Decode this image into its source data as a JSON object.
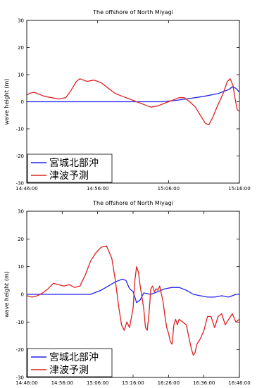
{
  "chart_data": [
    {
      "type": "line",
      "title": "The offshore of North Miyagi",
      "xlabel": "",
      "ylabel": "wave height (m)",
      "xlim_minutes": [
        0,
        30
      ],
      "ylim": [
        -30,
        30
      ],
      "yticks": [
        -30,
        -20,
        -10,
        0,
        10,
        20,
        30
      ],
      "xticks": [
        {
          "x": 0,
          "label": "14:46:00"
        },
        {
          "x": 10,
          "label": "14:56:00"
        },
        {
          "x": 20,
          "label": "15:06:00"
        },
        {
          "x": 30,
          "label": "15:16:00"
        }
      ],
      "legend_position": "bottom-left",
      "series": [
        {
          "name": "宮城北部沖",
          "color": "#2222ee",
          "points": [
            [
              0,
              0
            ],
            [
              8,
              0
            ],
            [
              16,
              0
            ],
            [
              19,
              0
            ],
            [
              21,
              0.5
            ],
            [
              23,
              1.2
            ],
            [
              25,
              2
            ],
            [
              27,
              3
            ],
            [
              28.5,
              4.5
            ],
            [
              29,
              5.5
            ],
            [
              29.5,
              5
            ],
            [
              30,
              3.5
            ]
          ]
        },
        {
          "name": "津波予測",
          "color": "#dd2222",
          "points": [
            [
              0,
              2.5
            ],
            [
              0.5,
              3.2
            ],
            [
              1,
              3.5
            ],
            [
              1.5,
              3
            ],
            [
              2.5,
              2
            ],
            [
              3.5,
              1.5
            ],
            [
              4.5,
              1
            ],
            [
              5.5,
              1.5
            ],
            [
              6.2,
              4
            ],
            [
              7,
              7.5
            ],
            [
              7.5,
              8.5
            ],
            [
              8,
              8
            ],
            [
              8.5,
              7.5
            ],
            [
              9.5,
              8
            ],
            [
              10.5,
              7
            ],
            [
              11.5,
              5
            ],
            [
              12.5,
              3
            ],
            [
              13.5,
              2
            ],
            [
              14.5,
              1
            ],
            [
              15.5,
              0
            ],
            [
              16.5,
              -1
            ],
            [
              17.5,
              -2
            ],
            [
              18.5,
              -1.5
            ],
            [
              19.5,
              -0.5
            ],
            [
              20.5,
              0.5
            ],
            [
              21.5,
              1.5
            ],
            [
              22.2,
              1.5
            ],
            [
              23,
              0
            ],
            [
              23.8,
              -2
            ],
            [
              24.5,
              -5
            ],
            [
              25.2,
              -8
            ],
            [
              25.7,
              -8.5
            ],
            [
              26.2,
              -6
            ],
            [
              27,
              -1
            ],
            [
              27.7,
              3
            ],
            [
              28.3,
              7.5
            ],
            [
              28.7,
              8.5
            ],
            [
              29.1,
              6
            ],
            [
              29.4,
              1
            ],
            [
              29.7,
              -3
            ],
            [
              30,
              -3.5
            ]
          ]
        }
      ]
    },
    {
      "type": "line",
      "title": "The offshore of North Miyagi",
      "xlabel": "",
      "ylabel": "wave height (m)",
      "xlim_minutes": [
        0,
        120
      ],
      "ylim": [
        -30,
        30
      ],
      "yticks": [
        -30,
        -20,
        -10,
        0,
        10,
        20,
        30
      ],
      "xticks": [
        {
          "x": 0,
          "label": "14:46:00"
        },
        {
          "x": 20,
          "label": "14:56:00"
        },
        {
          "x": 40,
          "label": "15:06:00"
        },
        {
          "x": 60,
          "label": "15:16:00"
        },
        {
          "x": 80,
          "label": "16:26:00"
        },
        {
          "x": 100,
          "label": "16:36:00"
        },
        {
          "x": 120,
          "label": "16:46:00"
        }
      ],
      "legend_position": "bottom-left",
      "series": [
        {
          "name": "宮城北部沖",
          "color": "#2222ee",
          "points": [
            [
              0,
              0
            ],
            [
              16,
              0
            ],
            [
              20,
              0
            ],
            [
              28,
              0
            ],
            [
              36,
              0
            ],
            [
              42,
              1.5
            ],
            [
              46,
              3
            ],
            [
              50,
              4.5
            ],
            [
              54,
              5.5
            ],
            [
              56,
              5
            ],
            [
              58,
              2
            ],
            [
              60,
              1
            ],
            [
              62,
              -3
            ],
            [
              64,
              -2
            ],
            [
              66,
              0.5
            ],
            [
              70,
              0
            ],
            [
              74,
              1
            ],
            [
              78,
              2
            ],
            [
              82,
              2.5
            ],
            [
              86,
              2.5
            ],
            [
              90,
              1.5
            ],
            [
              94,
              0
            ],
            [
              98,
              -0.5
            ],
            [
              102,
              -1
            ],
            [
              106,
              -1
            ],
            [
              110,
              -0.5
            ],
            [
              114,
              -1
            ],
            [
              118,
              0
            ],
            [
              120,
              0
            ]
          ]
        },
        {
          "name": "津波予測",
          "color": "#dd2222",
          "points": [
            [
              0,
              -0.5
            ],
            [
              3,
              -1
            ],
            [
              6,
              -0.5
            ],
            [
              9,
              0.5
            ],
            [
              12,
              2
            ],
            [
              15,
              4
            ],
            [
              18,
              3.5
            ],
            [
              21,
              3
            ],
            [
              24,
              3.5
            ],
            [
              27,
              2.5
            ],
            [
              30,
              3
            ],
            [
              33,
              7
            ],
            [
              36,
              12
            ],
            [
              39,
              15
            ],
            [
              42,
              17
            ],
            [
              45,
              17.5
            ],
            [
              48,
              13
            ],
            [
              50,
              5
            ],
            [
              52,
              -5
            ],
            [
              53.5,
              -11
            ],
            [
              55,
              -13
            ],
            [
              56.5,
              -10
            ],
            [
              58,
              -12
            ],
            [
              60,
              -5
            ],
            [
              61,
              5
            ],
            [
              62,
              10
            ],
            [
              63,
              8
            ],
            [
              64,
              3
            ],
            [
              66,
              -5
            ],
            [
              67,
              -12
            ],
            [
              68,
              -13
            ],
            [
              69,
              -7
            ],
            [
              70,
              2
            ],
            [
              71,
              3
            ],
            [
              72,
              1
            ],
            [
              73,
              2
            ],
            [
              74,
              1.5
            ],
            [
              75,
              3
            ],
            [
              76,
              0
            ],
            [
              77,
              -3
            ],
            [
              78,
              -8
            ],
            [
              79,
              -12
            ],
            [
              80,
              -14
            ],
            [
              81,
              -17
            ],
            [
              82,
              -18
            ],
            [
              83,
              -11
            ],
            [
              84,
              -9
            ],
            [
              85,
              -11
            ],
            [
              86,
              -9
            ],
            [
              88,
              -10
            ],
            [
              90,
              -11
            ],
            [
              92,
              -17
            ],
            [
              93,
              -20
            ],
            [
              94,
              -22
            ],
            [
              95,
              -21
            ],
            [
              96,
              -18
            ],
            [
              98,
              -16
            ],
            [
              100,
              -13
            ],
            [
              102,
              -8
            ],
            [
              104,
              -8
            ],
            [
              106,
              -12
            ],
            [
              108,
              -8
            ],
            [
              110,
              -7
            ],
            [
              112,
              -11
            ],
            [
              114,
              -9
            ],
            [
              116,
              -7
            ],
            [
              118,
              -10
            ],
            [
              120,
              -9
            ]
          ]
        }
      ]
    }
  ]
}
